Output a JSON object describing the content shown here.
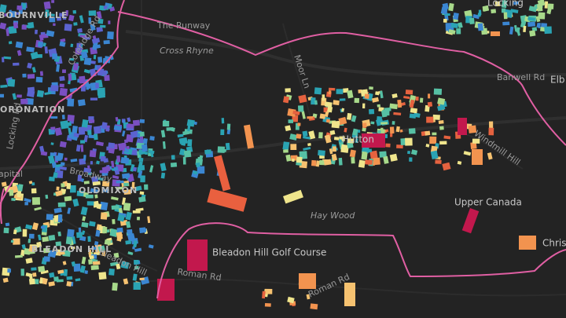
{
  "labels": [
    "BOURNVILLE",
    "The Runway",
    "Cross Rhyne",
    "Moor Ln",
    "Locking",
    "Banwell Rd",
    "Coleridge Rd",
    "ORONATION",
    "Locking Rd",
    "apital",
    "Broadway",
    "OLDMIXON",
    "Hutton",
    "Windmill Hill",
    "Upper Canada",
    "Hay Wood",
    "Bleadon Hill Golf Course",
    "Roman Rd",
    "Roman Rd",
    "BLEADON HILL",
    "Bleadon Hill",
    "Christo",
    "Elb"
  ]
}
